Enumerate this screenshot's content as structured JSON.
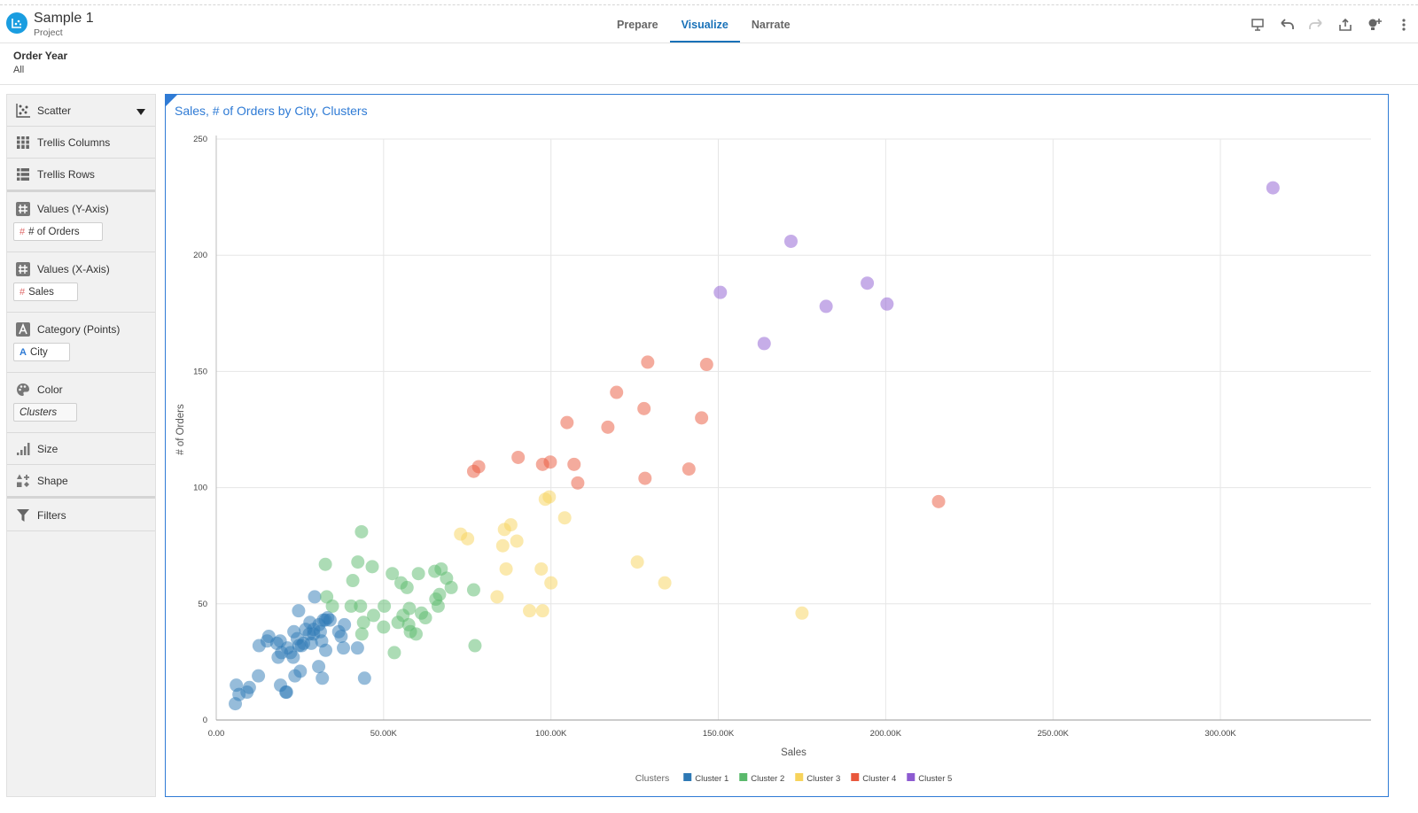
{
  "project": {
    "title": "Sample 1",
    "subtitle": "Project"
  },
  "tabs": [
    {
      "label": "Prepare",
      "active": false
    },
    {
      "label": "Visualize",
      "active": true
    },
    {
      "label": "Narrate",
      "active": false
    }
  ],
  "toolbar": {
    "icons": [
      "present-icon",
      "undo-icon",
      "redo-icon",
      "export-icon",
      "add-insight-icon",
      "more-icon"
    ]
  },
  "filter": {
    "name": "Order Year",
    "value": "All"
  },
  "grammar": {
    "chart_type": "Scatter",
    "trellis_columns": "Trellis Columns",
    "trellis_rows": "Trellis Rows",
    "y_axis": {
      "label": "Values (Y-Axis)",
      "pill": "# of Orders"
    },
    "x_axis": {
      "label": "Values (X-Axis)",
      "pill": "Sales"
    },
    "category": {
      "label": "Category (Points)",
      "pill": "City"
    },
    "color": {
      "label": "Color",
      "pill": "Clusters"
    },
    "size": "Size",
    "shape": "Shape",
    "filters": "Filters"
  },
  "colors": {
    "accent": "#2f7bd5",
    "brand": "#1a9de0"
  },
  "chart_data": {
    "type": "scatter",
    "title": "Sales, # of Orders by City, Clusters",
    "xlabel": "Sales",
    "ylabel": "# of Orders",
    "xlim": [
      0,
      345000
    ],
    "ylim": [
      0,
      250
    ],
    "x_ticks": [
      {
        "value": 0,
        "label": "0.00"
      },
      {
        "value": 50000,
        "label": "50.00K"
      },
      {
        "value": 100000,
        "label": "100.00K"
      },
      {
        "value": 150000,
        "label": "150.00K"
      },
      {
        "value": 200000,
        "label": "200.00K"
      },
      {
        "value": 250000,
        "label": "250.00K"
      },
      {
        "value": 300000,
        "label": "300.00K"
      }
    ],
    "y_ticks": [
      {
        "value": 0,
        "label": "0"
      },
      {
        "value": 50,
        "label": "50"
      },
      {
        "value": 100,
        "label": "100"
      },
      {
        "value": 150,
        "label": "150"
      },
      {
        "value": 200,
        "label": "200"
      },
      {
        "value": 250,
        "label": "250"
      }
    ],
    "grid": true,
    "legend": {
      "title": "Clusters",
      "position": "bottom-center"
    },
    "series": [
      {
        "name": "Cluster 1",
        "color": "#2e79b5",
        "points": [
          [
            5700,
            7
          ],
          [
            6800,
            11
          ],
          [
            6000,
            15
          ],
          [
            9900,
            14
          ],
          [
            9200,
            12
          ],
          [
            12600,
            19
          ],
          [
            12800,
            32
          ],
          [
            15700,
            36
          ],
          [
            15200,
            34
          ],
          [
            18500,
            27
          ],
          [
            18100,
            33
          ],
          [
            19100,
            34
          ],
          [
            19500,
            29
          ],
          [
            19200,
            15
          ],
          [
            20800,
            12
          ],
          [
            21300,
            31
          ],
          [
            21000,
            12
          ],
          [
            22200,
            29
          ],
          [
            23200,
            38
          ],
          [
            23000,
            27
          ],
          [
            24200,
            35
          ],
          [
            23500,
            19
          ],
          [
            24700,
            32
          ],
          [
            25500,
            32
          ],
          [
            25100,
            21
          ],
          [
            24600,
            47
          ],
          [
            26100,
            33
          ],
          [
            26700,
            39
          ],
          [
            27800,
            37
          ],
          [
            28400,
            33
          ],
          [
            28000,
            42
          ],
          [
            29100,
            37
          ],
          [
            29100,
            39
          ],
          [
            29400,
            53
          ],
          [
            30700,
            41
          ],
          [
            30600,
            23
          ],
          [
            31100,
            38
          ],
          [
            31700,
            18
          ],
          [
            31500,
            34
          ],
          [
            32000,
            43
          ],
          [
            32700,
            30
          ],
          [
            32600,
            43
          ],
          [
            33300,
            44
          ],
          [
            34000,
            43
          ],
          [
            36600,
            38
          ],
          [
            37300,
            36
          ],
          [
            38000,
            31
          ],
          [
            38300,
            41
          ],
          [
            42200,
            31
          ],
          [
            44300,
            18
          ]
        ]
      },
      {
        "name": "Cluster 2",
        "color": "#5ab96c",
        "points": [
          [
            32600,
            67
          ],
          [
            33000,
            53
          ],
          [
            34700,
            49
          ],
          [
            40300,
            49
          ],
          [
            40800,
            60
          ],
          [
            42300,
            68
          ],
          [
            43100,
            49
          ],
          [
            43400,
            81
          ],
          [
            43500,
            37
          ],
          [
            44000,
            42
          ],
          [
            46600,
            66
          ],
          [
            47000,
            45
          ],
          [
            50200,
            49
          ],
          [
            50000,
            40
          ],
          [
            52600,
            63
          ],
          [
            53200,
            29
          ],
          [
            54300,
            42
          ],
          [
            55200,
            59
          ],
          [
            55800,
            45
          ],
          [
            57000,
            57
          ],
          [
            57500,
            41
          ],
          [
            57700,
            48
          ],
          [
            58000,
            38
          ],
          [
            59700,
            37
          ],
          [
            60400,
            63
          ],
          [
            61300,
            46
          ],
          [
            62500,
            44
          ],
          [
            65600,
            52
          ],
          [
            65300,
            64
          ],
          [
            66300,
            49
          ],
          [
            66700,
            54
          ],
          [
            67200,
            65
          ],
          [
            68800,
            61
          ],
          [
            70200,
            57
          ],
          [
            76900,
            56
          ],
          [
            77300,
            32
          ]
        ]
      },
      {
        "name": "Cluster 3",
        "color": "#f7d35b",
        "points": [
          [
            73000,
            80
          ],
          [
            75100,
            78
          ],
          [
            83900,
            53
          ],
          [
            85600,
            75
          ],
          [
            86100,
            82
          ],
          [
            86600,
            65
          ],
          [
            88000,
            84
          ],
          [
            89800,
            77
          ],
          [
            93600,
            47
          ],
          [
            97100,
            65
          ],
          [
            97500,
            47
          ],
          [
            98300,
            95
          ],
          [
            99500,
            96
          ],
          [
            100000,
            59
          ],
          [
            104100,
            87
          ],
          [
            125800,
            68
          ],
          [
            134000,
            59
          ],
          [
            175000,
            46
          ]
        ]
      },
      {
        "name": "Cluster 4",
        "color": "#e9573c",
        "points": [
          [
            76900,
            107
          ],
          [
            78400,
            109
          ],
          [
            90200,
            113
          ],
          [
            97500,
            110
          ],
          [
            99800,
            111
          ],
          [
            104800,
            128
          ],
          [
            106900,
            110
          ],
          [
            108000,
            102
          ],
          [
            117000,
            126
          ],
          [
            119600,
            141
          ],
          [
            127800,
            134
          ],
          [
            128100,
            104
          ],
          [
            128900,
            154
          ],
          [
            141200,
            108
          ],
          [
            145000,
            130
          ],
          [
            146500,
            153
          ],
          [
            215800,
            94
          ]
        ]
      },
      {
        "name": "Cluster 5",
        "color": "#8d5bd1",
        "points": [
          [
            150600,
            184
          ],
          [
            163700,
            162
          ],
          [
            171700,
            206
          ],
          [
            182200,
            178
          ],
          [
            194500,
            188
          ],
          [
            200400,
            179
          ],
          [
            315700,
            229
          ]
        ]
      }
    ]
  }
}
